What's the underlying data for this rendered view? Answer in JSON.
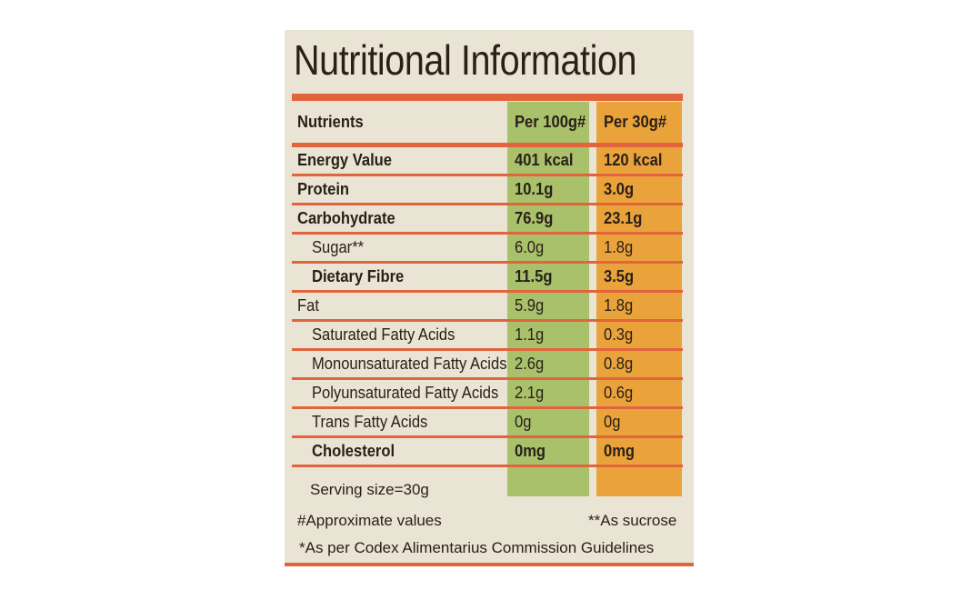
{
  "title": "Nutritional Information",
  "table": {
    "header": {
      "name": "Nutrients",
      "col1": "Per 100g#",
      "col2": "Per 30g#"
    },
    "rows": [
      {
        "name": "Energy Value",
        "v1": "401 kcal",
        "v2": "120 kcal",
        "bold": true,
        "indent": false
      },
      {
        "name": "Protein",
        "v1": "10.1g",
        "v2": "3.0g",
        "bold": true,
        "indent": false
      },
      {
        "name": "Carbohydrate",
        "v1": "76.9g",
        "v2": "23.1g",
        "bold": true,
        "indent": false
      },
      {
        "name": "Sugar**",
        "v1": "6.0g",
        "v2": "1.8g",
        "bold": false,
        "indent": true
      },
      {
        "name": "Dietary Fibre",
        "v1": "11.5g",
        "v2": "3.5g",
        "bold": true,
        "indent": true
      },
      {
        "name": "Fat",
        "v1": "5.9g",
        "v2": "1.8g",
        "bold": false,
        "indent": false
      },
      {
        "name": "Saturated Fatty Acids",
        "v1": "1.1g",
        "v2": "0.3g",
        "bold": false,
        "indent": true
      },
      {
        "name": "Monounsaturated Fatty Acids",
        "v1": "2.6g",
        "v2": "0.8g",
        "bold": false,
        "indent": true
      },
      {
        "name": "Polyunsaturated Fatty Acids",
        "v1": "2.1g",
        "v2": "0.6g",
        "bold": false,
        "indent": true
      },
      {
        "name": "Trans Fatty Acids",
        "v1": "0g",
        "v2": "0g",
        "bold": false,
        "indent": true
      },
      {
        "name": "Cholesterol",
        "v1": "0mg",
        "v2": "0mg",
        "bold": true,
        "indent": true
      }
    ]
  },
  "footer": {
    "serving": "Serving size=30g",
    "approx": "#Approximate values",
    "sucrose": "**As sucrose",
    "codex": "*As per Codex Alimentarius Commission Guidelines"
  },
  "colors": {
    "background": "#e9e4d4",
    "rule": "#e1643c",
    "col1": "#a9c16b",
    "col2": "#eaa33a"
  }
}
